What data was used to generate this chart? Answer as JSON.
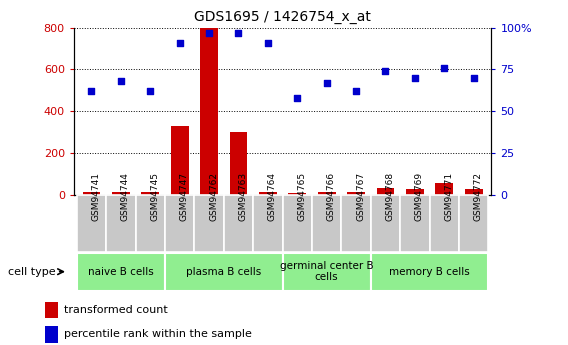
{
  "title": "GDS1695 / 1426754_x_at",
  "samples": [
    "GSM94741",
    "GSM94744",
    "GSM94745",
    "GSM94747",
    "GSM94762",
    "GSM94763",
    "GSM94764",
    "GSM94765",
    "GSM94766",
    "GSM94767",
    "GSM94768",
    "GSM94769",
    "GSM94771",
    "GSM94772"
  ],
  "transformed_count": [
    15,
    12,
    14,
    330,
    800,
    300,
    12,
    10,
    14,
    12,
    35,
    28,
    55,
    28
  ],
  "percentile_rank": [
    62,
    68,
    62,
    91,
    97,
    97,
    91,
    58,
    67,
    62,
    74,
    70,
    76,
    70
  ],
  "group_boundaries": [
    [
      0,
      3,
      "naive B cells"
    ],
    [
      3,
      7,
      "plasma B cells"
    ],
    [
      7,
      10,
      "germinal center B\ncells"
    ],
    [
      10,
      14,
      "memory B cells"
    ]
  ],
  "ylim_left": [
    0,
    800
  ],
  "ylim_right": [
    0,
    100
  ],
  "yticks_left": [
    0,
    200,
    400,
    600,
    800
  ],
  "yticks_right": [
    0,
    25,
    50,
    75,
    100
  ],
  "ytick_labels_right": [
    "0",
    "25",
    "50",
    "75",
    "100%"
  ],
  "bar_color": "#CC0000",
  "dot_color": "#0000CC",
  "green_color": "#90EE90",
  "gray_color": "#C8C8C8",
  "tick_label_color_left": "#CC0000",
  "tick_label_color_right": "#0000CC"
}
